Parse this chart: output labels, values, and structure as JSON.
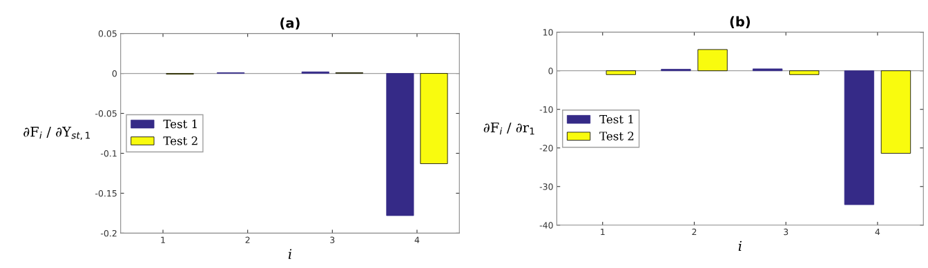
{
  "chart_data": [
    {
      "type": "bar",
      "title": "(a)",
      "xlabel": "i",
      "ylabel": "∂F$_{i}$ / ∂Y$_{st,1}$",
      "categories": [
        "1",
        "2",
        "3",
        "4"
      ],
      "series": [
        {
          "name": "Test 1",
          "color": "#352a87",
          "values": [
            null,
            0.001,
            0.002,
            -0.178
          ]
        },
        {
          "name": "Test 2",
          "color": "#f9fb0e",
          "values": [
            -0.001,
            null,
            0.001,
            -0.113
          ]
        }
      ],
      "ylim": [
        -0.2,
        0.05
      ],
      "yticks": [
        -0.2,
        -0.15,
        -0.1,
        -0.05,
        0,
        0.05
      ],
      "ref_lines": [
        {
          "axis": "y",
          "value": 0,
          "color": "#a0a0a0"
        }
      ],
      "grid": false,
      "legend": "left"
    },
    {
      "type": "bar",
      "title": "(b)",
      "xlabel": "i",
      "ylabel": "∂F$_{i}$ / ∂r$_{1}$",
      "categories": [
        "1",
        "2",
        "3",
        "4"
      ],
      "series": [
        {
          "name": "Test 1",
          "color": "#352a87",
          "values": [
            null,
            0.4,
            0.5,
            -34.7
          ]
        },
        {
          "name": "Test 2",
          "color": "#f9fb0e",
          "values": [
            -1.0,
            5.5,
            -1.0,
            -21.4
          ]
        }
      ],
      "ylim": [
        -40,
        10
      ],
      "yticks": [
        -40,
        -30,
        -20,
        -10,
        0,
        10
      ],
      "ref_lines": [
        {
          "axis": "y",
          "value": 0,
          "color": "#a0a0a0"
        }
      ],
      "grid": false,
      "legend": "left"
    }
  ]
}
